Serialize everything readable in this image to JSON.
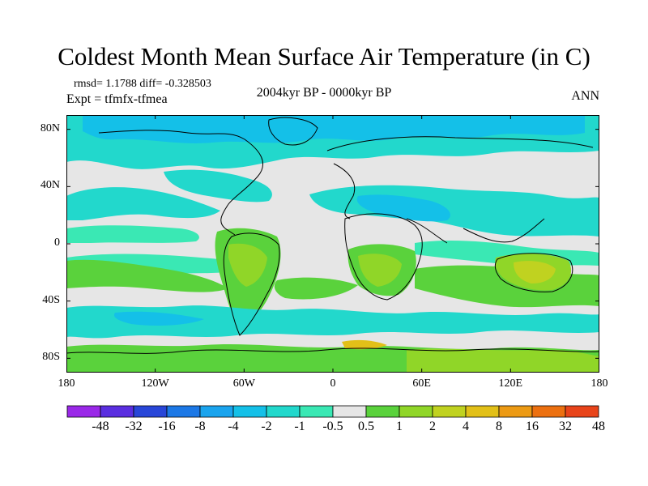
{
  "title": "Coldest Month Mean Surface Air Temperature (in C)",
  "stats": "rmsd= 1.1788 diff= -0.328503",
  "experiment": "Expt = tfmfx-tfmea",
  "period": "2004kyr BP - 0000kyr BP",
  "season": "ANN",
  "lat_ticks": [
    {
      "label": "80N",
      "lat": 80
    },
    {
      "label": "40N",
      "lat": 40
    },
    {
      "label": "0",
      "lat": 0
    },
    {
      "label": "40S",
      "lat": -40
    },
    {
      "label": "80S",
      "lat": -80
    }
  ],
  "lon_ticks": [
    {
      "label": "180",
      "lon": -180
    },
    {
      "label": "120W",
      "lon": -120
    },
    {
      "label": "60W",
      "lon": -60
    },
    {
      "label": "0",
      "lon": 0
    },
    {
      "label": "60E",
      "lon": 60
    },
    {
      "label": "120E",
      "lon": 120
    },
    {
      "label": "180",
      "lon": 180
    }
  ],
  "colorbar": {
    "colors": [
      "#9a28e8",
      "#5a2ee0",
      "#2846d8",
      "#1c78e6",
      "#1aa4ee",
      "#14c0e8",
      "#22d8cc",
      "#3ae8b4",
      "#e6e6e6",
      "#5ad23c",
      "#90d628",
      "#c0d220",
      "#e2c018",
      "#ec9a14",
      "#ec7010",
      "#e8441a"
    ],
    "labels": [
      "-48",
      "-32",
      "-16",
      "-8",
      "-4",
      "-2",
      "-1",
      "-0.5",
      "0.5",
      "1",
      "2",
      "4",
      "8",
      "16",
      "32",
      "48"
    ]
  }
}
